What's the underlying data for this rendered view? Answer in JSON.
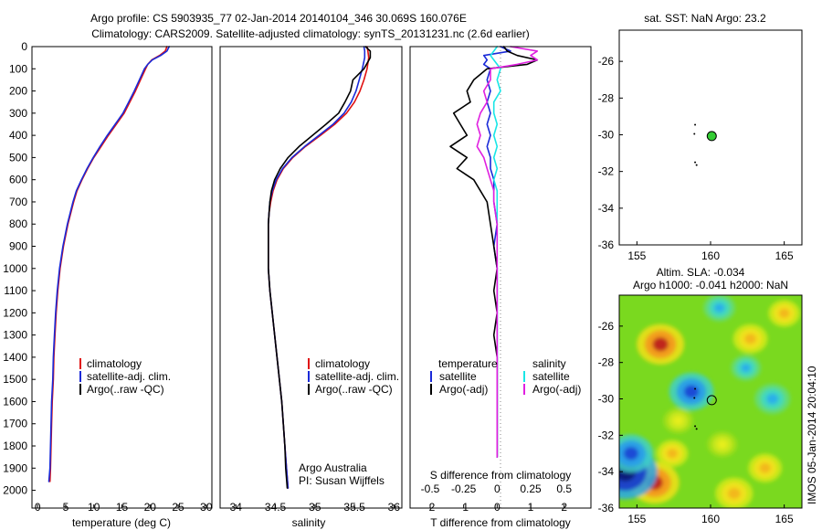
{
  "header": {
    "line1": "Argo profile: CS 5903935_77 02-Jan-2014 20140104_346 30.069S 160.076E",
    "line2": "Climatology: CARS2009. Satellite-adjusted climatology: synTS_20131231.nc (2.6d earlier)"
  },
  "colors": {
    "climatology": "#e01010",
    "satellite": "#1a2ad8",
    "argo": "#000000",
    "salinity_satellite": "#19e6e6",
    "salinity_argo": "#e020e0",
    "dot": "#33cc33",
    "dotted": "#888888"
  },
  "depth_axis": {
    "ticks": [
      "0",
      "100",
      "200",
      "300",
      "400",
      "500",
      "600",
      "700",
      "800",
      "900",
      "1000",
      "1100",
      "1200",
      "1300",
      "1400",
      "1500",
      "1600",
      "1700",
      "1800",
      "1900",
      "2000"
    ]
  },
  "chart_data": [
    {
      "type": "line",
      "name": "temperature-profile",
      "xlabel": "temperature (deg C)",
      "xlim": [
        -1,
        31
      ],
      "ylim": [
        0,
        2080
      ],
      "xticks": [
        "0",
        "5",
        "10",
        "15",
        "20",
        "25",
        "30"
      ],
      "xtick_values": [
        0,
        5,
        10,
        15,
        20,
        25,
        30
      ],
      "legend": [
        "climatology",
        "satellite-adj. clim.",
        "Argo(..raw -QC)"
      ],
      "depth": [
        0,
        20,
        40,
        60,
        80,
        100,
        150,
        200,
        250,
        300,
        350,
        400,
        450,
        500,
        550,
        600,
        650,
        700,
        800,
        900,
        1000,
        1100,
        1200,
        1300,
        1400,
        1500,
        1600,
        1700,
        1800,
        1900,
        1960
      ],
      "series": [
        {
          "name": "climatology",
          "values": [
            23.0,
            22.7,
            21.7,
            20.3,
            19.6,
            19.2,
            18.3,
            17.4,
            16.4,
            15.4,
            14.0,
            12.6,
            11.3,
            10.0,
            8.9,
            7.9,
            7.0,
            6.4,
            5.4,
            4.6,
            4.0,
            3.6,
            3.3,
            3.1,
            2.9,
            2.8,
            2.6,
            2.5,
            2.4,
            2.3,
            2.2
          ]
        },
        {
          "name": "satellite",
          "values": [
            23.4,
            23.0,
            21.9,
            20.4,
            19.6,
            19.0,
            18.1,
            17.2,
            16.2,
            15.2,
            13.8,
            12.4,
            11.1,
            9.9,
            8.8,
            7.8,
            6.9,
            6.3,
            5.3,
            4.5,
            3.9,
            3.5,
            3.2,
            3.0,
            2.8,
            2.7,
            2.5,
            2.4,
            2.3,
            2.2,
            2.0
          ]
        }
      ]
    },
    {
      "type": "line",
      "name": "salinity-profile",
      "xlabel": "salinity",
      "xlim": [
        33.8,
        36.1
      ],
      "ylim": [
        0,
        2080
      ],
      "xticks": [
        "34",
        "34.5",
        "35",
        "35.5",
        "36"
      ],
      "xtick_values": [
        34,
        34.5,
        35,
        35.5,
        36
      ],
      "legend": [
        "climatology",
        "satellite-adj. clim.",
        "Argo(..raw -QC)"
      ],
      "credit_line1": "Argo Australia",
      "credit_line2": "PI: Susan Wijffels",
      "depth": [
        0,
        20,
        50,
        100,
        150,
        200,
        250,
        300,
        350,
        400,
        450,
        500,
        550,
        600,
        650,
        700,
        750,
        800,
        900,
        1000,
        1100,
        1200,
        1300,
        1400,
        1500,
        1600,
        1700,
        1800,
        1900,
        1990
      ],
      "series": [
        {
          "name": "climatology",
          "values": [
            35.66,
            35.67,
            35.68,
            35.66,
            35.62,
            35.57,
            35.5,
            35.4,
            35.25,
            35.07,
            34.88,
            34.72,
            34.6,
            34.52,
            34.47,
            34.44,
            34.42,
            34.41,
            34.41,
            34.41,
            34.43,
            34.46,
            34.49,
            34.52,
            34.55,
            34.58,
            34.6,
            34.62,
            34.64,
            34.66
          ]
        },
        {
          "name": "satellite",
          "values": [
            35.62,
            35.63,
            35.63,
            35.6,
            35.56,
            35.52,
            35.46,
            35.37,
            35.23,
            35.05,
            34.87,
            34.71,
            34.59,
            34.51,
            34.46,
            34.43,
            34.42,
            34.41,
            34.41,
            34.41,
            34.43,
            34.46,
            34.49,
            34.52,
            34.55,
            34.58,
            34.6,
            34.62,
            34.64,
            34.66
          ]
        },
        {
          "name": "argo",
          "values": [
            35.64,
            35.7,
            35.7,
            35.62,
            35.48,
            35.45,
            35.38,
            35.3,
            35.14,
            34.97,
            34.8,
            34.66,
            34.56,
            34.49,
            34.45,
            34.43,
            34.42,
            34.41,
            34.41,
            34.41,
            34.43,
            34.46,
            34.49,
            34.52,
            34.55,
            34.58,
            34.6,
            34.62,
            34.63,
            34.65
          ]
        }
      ]
    },
    {
      "type": "line",
      "name": "difference-profile",
      "xlabel": "T difference from climatology",
      "xlabel_top": "S difference from climatology",
      "xlim": [
        -2.6,
        2.8
      ],
      "ylim": [
        0,
        2080
      ],
      "xticks": [
        "-2",
        "-1",
        "0",
        "1",
        "2"
      ],
      "xtick_values": [
        -2,
        -1,
        0,
        1,
        2
      ],
      "sticks": [
        "-0.5",
        "-0.25",
        "0",
        "0.25",
        "0.5"
      ],
      "stick_values": [
        -2,
        -1,
        0,
        1,
        2
      ],
      "legend_temperature": [
        "temperature",
        "satellite",
        "Argo(-adj)"
      ],
      "legend_salinity": [
        "salinity",
        "satellite",
        "Argo(-adj)"
      ],
      "depth": [
        0,
        20,
        40,
        60,
        80,
        100,
        150,
        200,
        250,
        300,
        350,
        400,
        450,
        500,
        550,
        600,
        650,
        700,
        800,
        900,
        1000,
        1100,
        1200,
        1300,
        1400,
        1500,
        1600,
        1700,
        1800,
        1850
      ],
      "series": [
        {
          "name": "temp-satellite",
          "values": [
            0.1,
            0.4,
            -0.4,
            -0.3,
            -0.4,
            -0.2,
            -0.3,
            -0.2,
            -0.3,
            -0.2,
            -0.3,
            -0.2,
            -0.3,
            -0.2,
            -0.2,
            -0.1,
            -0.1,
            -0.1,
            0.0,
            -0.1,
            0.0,
            0.0,
            0.0,
            0.0,
            0.0,
            0.0,
            0.0,
            0.0,
            0.0,
            0.0
          ]
        },
        {
          "name": "temp-argo",
          "values": [
            0.2,
            0.3,
            0.6,
            1.2,
            0.9,
            -0.3,
            -0.7,
            -0.9,
            -0.8,
            -1.3,
            -1.1,
            -0.9,
            -1.4,
            -0.9,
            -1.2,
            -0.7,
            -0.5,
            -0.3,
            -0.2,
            -0.1,
            0.0,
            -0.1,
            0.0,
            -0.1,
            0.0,
            0.0,
            0.0,
            0.0,
            0.0,
            0.0
          ]
        },
        {
          "name": "sal-satellite",
          "values": [
            0.0,
            -0.1,
            -0.2,
            -0.1,
            0.0,
            0.1,
            0.0,
            0.1,
            -0.1,
            -0.1,
            0.0,
            -0.1,
            0.0,
            -0.1,
            0.0,
            -0.1,
            0.0,
            0.0,
            0.0,
            0.0,
            0.0,
            0.0,
            0.0,
            0.0,
            0.0,
            0.0,
            0.0,
            0.0,
            0.0,
            0.0
          ]
        },
        {
          "name": "sal-argo",
          "values": [
            0.4,
            1.2,
            1.0,
            1.2,
            0.6,
            -0.2,
            -0.2,
            -0.4,
            -0.3,
            -0.5,
            -0.6,
            -0.5,
            -0.6,
            -0.4,
            -0.3,
            -0.2,
            -0.1,
            -0.1,
            0.0,
            0.0,
            0.0,
            0.0,
            0.0,
            0.0,
            0.0,
            0.0,
            0.0,
            0.0,
            0.0,
            0.0
          ]
        }
      ]
    },
    {
      "type": "scatter",
      "name": "sst-map",
      "title": "sat. SST: NaN  Argo: 23.2",
      "xlim": [
        153.8,
        166.2
      ],
      "ylim": [
        -36,
        -24.3
      ],
      "xticks": [
        "155",
        "160",
        "165"
      ],
      "xtick_values": [
        155,
        160,
        165
      ],
      "yticks": [
        "-26",
        "-28",
        "-30",
        "-32",
        "-34",
        "-36"
      ],
      "ytick_values": [
        -26,
        -28,
        -30,
        -32,
        -34,
        -36
      ],
      "points": [
        {
          "lon": 160.08,
          "lat": -30.07
        }
      ],
      "track": [
        {
          "lon": 158.95,
          "lat": -29.45
        },
        {
          "lon": 158.9,
          "lat": -29.95
        },
        {
          "lon": 158.95,
          "lat": -31.5
        },
        {
          "lon": 159.05,
          "lat": -31.65
        }
      ]
    },
    {
      "type": "heatmap",
      "name": "sla-map",
      "title_line1": "Altim. SLA: -0.034",
      "title_line2": "Argo h1000: -0.041  h2000: NaN",
      "xlim": [
        153.8,
        166.2
      ],
      "ylim": [
        -36,
        -24.3
      ],
      "xticks": [
        "155",
        "160",
        "165"
      ],
      "xtick_values": [
        155,
        160,
        165
      ],
      "yticks": [
        "-26",
        "-28",
        "-30",
        "-32",
        "-34",
        "-36"
      ],
      "ytick_values": [
        -26,
        -28,
        -30,
        -32,
        -34,
        -36
      ],
      "point": {
        "lon": 160.08,
        "lat": -30.07
      },
      "track": [
        {
          "lon": 158.95,
          "lat": -29.45
        },
        {
          "lon": 158.9,
          "lat": -29.95
        },
        {
          "lon": 158.95,
          "lat": -31.5
        },
        {
          "lon": 159.05,
          "lat": -31.65
        }
      ],
      "blobs": [
        {
          "lon": 156.6,
          "lat": -27.0,
          "value": 0.28
        },
        {
          "lon": 156.2,
          "lat": -34.6,
          "value": 0.3
        },
        {
          "lon": 154.2,
          "lat": -34.0,
          "value": -0.45
        },
        {
          "lon": 154.6,
          "lat": -33.0,
          "value": -0.25
        },
        {
          "lon": 158.7,
          "lat": -29.6,
          "value": -0.25
        },
        {
          "lon": 160.6,
          "lat": -25.0,
          "value": -0.12
        },
        {
          "lon": 164.2,
          "lat": -30.0,
          "value": -0.16
        },
        {
          "lon": 162.4,
          "lat": -28.3,
          "value": -0.1
        },
        {
          "lon": 162.7,
          "lat": -26.7,
          "value": 0.15
        },
        {
          "lon": 163.7,
          "lat": -33.8,
          "value": 0.14
        },
        {
          "lon": 160.8,
          "lat": -32.5,
          "value": 0.1
        },
        {
          "lon": 165.0,
          "lat": -25.3,
          "value": 0.12
        },
        {
          "lon": 157.8,
          "lat": -31.2,
          "value": 0.1
        },
        {
          "lon": 161.6,
          "lat": -35.2,
          "value": 0.18
        },
        {
          "lon": 157.4,
          "lat": -33.0,
          "value": 0.12
        }
      ],
      "watermark": "IMOS 05-Jan-2014 20:04:10"
    }
  ]
}
